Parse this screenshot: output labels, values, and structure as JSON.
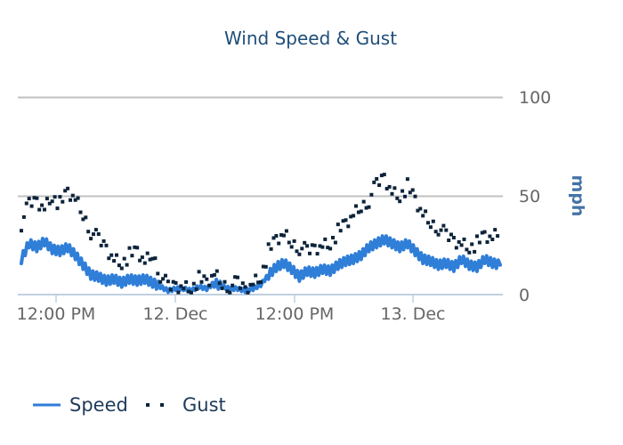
{
  "chart_data": {
    "type": "line",
    "title": "Wind Speed & Gust",
    "xlabel": "",
    "ylabel": "mph",
    "ylim": [
      0,
      100
    ],
    "y_ticks": [
      "0",
      "50",
      "100"
    ],
    "x_ticks": [
      "12:00 PM",
      "12. Dec",
      "12:00 PM",
      "13. Dec"
    ],
    "grid": true,
    "legend_position": "bottom-left",
    "colors": {
      "speed": "#2f7ed8",
      "gust": "#0d233a",
      "grid": "#c0c0c0",
      "axis": "#c0d0e0"
    },
    "x_hours": [
      0,
      1,
      2,
      3,
      4,
      5,
      6,
      7,
      8,
      9,
      10,
      11,
      12,
      13,
      14,
      15,
      16,
      17,
      18,
      19,
      20,
      21,
      22,
      23,
      24,
      25,
      26,
      27,
      28,
      29,
      30,
      31,
      32,
      33,
      34,
      35,
      36,
      37,
      38,
      39,
      40,
      41,
      42,
      43,
      44,
      45,
      46,
      47,
      48,
      49,
      50,
      51,
      52,
      53,
      54,
      55,
      56,
      57,
      58,
      59,
      60,
      61,
      62
    ],
    "series": [
      {
        "name": "Speed",
        "style": "solid",
        "values": [
          18,
          26,
          24,
          27,
          23,
          22,
          24,
          20,
          15,
          10,
          9,
          7,
          8,
          6,
          8,
          7,
          8,
          6,
          4,
          2,
          3,
          3,
          2,
          4,
          3,
          6,
          4,
          3,
          3,
          2,
          3,
          5,
          10,
          14,
          16,
          13,
          9,
          12,
          11,
          13,
          12,
          15,
          17,
          18,
          20,
          24,
          26,
          28,
          26,
          24,
          26,
          22,
          18,
          17,
          15,
          16,
          14,
          18,
          15,
          14,
          18,
          16,
          15
        ]
      },
      {
        "name": "Gust",
        "style": "dotted",
        "values": [
          36,
          46,
          48,
          44,
          50,
          46,
          52,
          48,
          40,
          32,
          28,
          24,
          18,
          16,
          20,
          22,
          16,
          20,
          10,
          4,
          5,
          4,
          3,
          8,
          6,
          10,
          5,
          4,
          6,
          3,
          6,
          9,
          22,
          28,
          30,
          26,
          24,
          22,
          24,
          25,
          26,
          32,
          36,
          40,
          44,
          48,
          56,
          60,
          52,
          50,
          55,
          48,
          40,
          36,
          34,
          30,
          28,
          26,
          24,
          26,
          30,
          28,
          32
        ]
      }
    ]
  },
  "title": "Wind Speed & Gust",
  "y_axis": {
    "title": "mph",
    "ticks": [
      "100",
      "50",
      "0"
    ]
  },
  "x_axis": {
    "ticks": [
      "12:00 PM",
      "12. Dec",
      "12:00 PM",
      "13. Dec"
    ]
  },
  "legend": {
    "items": [
      {
        "label": "Speed"
      },
      {
        "label": "Gust"
      }
    ]
  }
}
